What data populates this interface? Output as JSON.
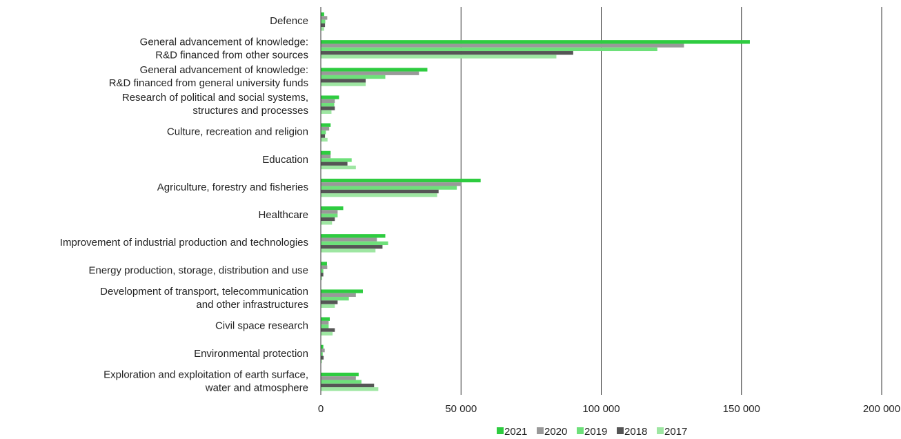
{
  "chart_data": {
    "type": "bar",
    "orientation": "horizontal",
    "categories": [
      [
        "Defence"
      ],
      [
        "General advancement of knowledge:",
        "R&D financed from other sources"
      ],
      [
        "General advancement of knowledge:",
        "R&D financed from general university funds"
      ],
      [
        "Research of political and social systems,",
        "structures and processes"
      ],
      [
        "Culture, recreation and religion"
      ],
      [
        "Education"
      ],
      [
        "Agriculture, forestry and fisheries"
      ],
      [
        "Healthcare"
      ],
      [
        "Improvement of industrial production and technologies"
      ],
      [
        "Energy production, storage, distribution and use"
      ],
      [
        "Development of transport, telecommunication",
        "and other infrastructures"
      ],
      [
        "Civil space research"
      ],
      [
        "Environmental protection"
      ],
      [
        "Exploration and exploitation of earth surface,",
        "water and atmosphere"
      ]
    ],
    "series": [
      {
        "name": "2021",
        "color": "#2ecc40",
        "values": [
          1200,
          153000,
          38000,
          6500,
          3500,
          3500,
          57000,
          8000,
          23000,
          2200,
          15000,
          3200,
          900,
          13500
        ]
      },
      {
        "name": "2020",
        "color": "#999999",
        "values": [
          2300,
          129500,
          35000,
          5000,
          3000,
          3500,
          50000,
          6000,
          20000,
          2300,
          12500,
          2800,
          1400,
          12500
        ]
      },
      {
        "name": "2019",
        "color": "#6ee07a",
        "values": [
          1600,
          120000,
          23000,
          4800,
          1800,
          11000,
          48500,
          6000,
          24000,
          900,
          10000,
          2800,
          700,
          14500
        ]
      },
      {
        "name": "2018",
        "color": "#555555",
        "values": [
          1500,
          90000,
          16000,
          5000,
          1500,
          9500,
          42000,
          5000,
          22000,
          900,
          6000,
          5000,
          1000,
          19000
        ]
      },
      {
        "name": "2017",
        "color": "#9ee6a2",
        "values": [
          1200,
          84000,
          16000,
          3800,
          2400,
          12500,
          41500,
          4000,
          19500,
          500,
          5000,
          4200,
          400,
          20500
        ]
      }
    ],
    "xlim": [
      0,
      200000
    ],
    "xticks": [
      0,
      50000,
      100000,
      150000,
      200000
    ],
    "xtick_labels": [
      "0",
      "50 000",
      "100 000",
      "150 000",
      "200 000"
    ],
    "grid": "vertical",
    "legend": "bottom-center"
  }
}
